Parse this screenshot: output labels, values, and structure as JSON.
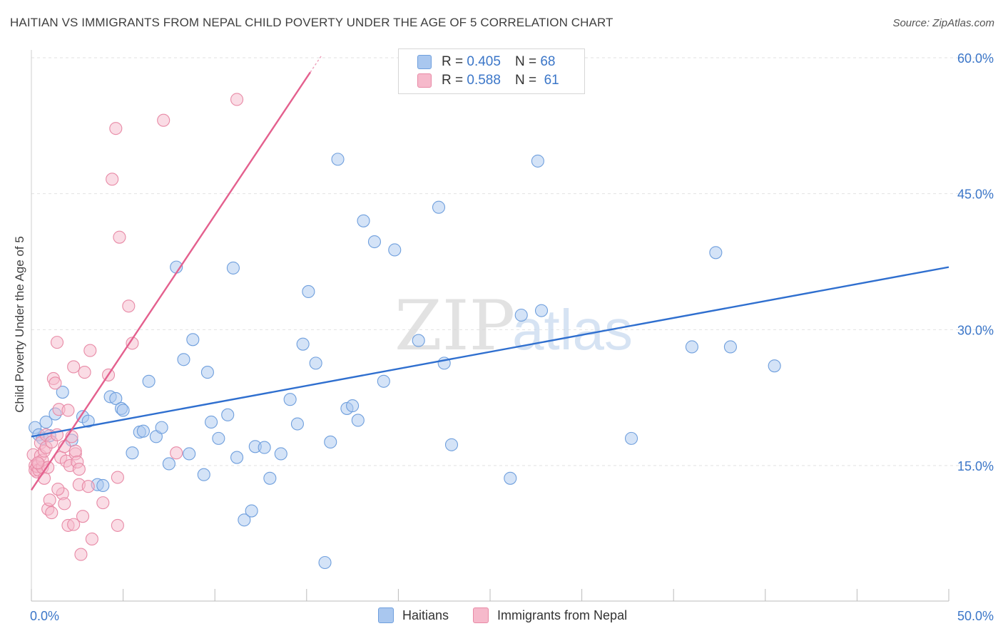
{
  "header": {
    "title": "HAITIAN VS IMMIGRANTS FROM NEPAL CHILD POVERTY UNDER THE AGE OF 5 CORRELATION CHART",
    "source": "Source: ZipAtlas.com"
  },
  "watermark": {
    "zip": "ZIP",
    "atlas": "atlas"
  },
  "legend_top": {
    "rows": [
      {
        "r_label": "R =",
        "r_value": "0.405",
        "n_label": "N =",
        "n_value": "68",
        "color": "#a9c7ef",
        "border": "#6f9fdd"
      },
      {
        "r_label": "R =",
        "r_value": "0.588",
        "n_label": "N =",
        "n_value": "61",
        "color": "#f6b9cb",
        "border": "#e88aa6"
      }
    ]
  },
  "legend_bottom": {
    "items": [
      {
        "label": "Haitians",
        "color": "#a9c7ef",
        "border": "#6f9fdd"
      },
      {
        "label": "Immigrants from Nepal",
        "color": "#f6b9cb",
        "border": "#e88aa6"
      }
    ]
  },
  "chart_data": {
    "type": "scatter",
    "title": "HAITIAN VS IMMIGRANTS FROM NEPAL CHILD POVERTY UNDER THE AGE OF 5 CORRELATION CHART",
    "xlabel": "",
    "ylabel": "Child Poverty Under the Age of 5",
    "xlim": [
      0,
      50
    ],
    "ylim": [
      0,
      62
    ],
    "x_tick_labels": [
      "0.0%",
      "50.0%"
    ],
    "y_ticks": [
      15,
      30,
      45,
      60
    ],
    "y_tick_labels": [
      "15.0%",
      "30.0%",
      "45.0%",
      "60.0%"
    ],
    "grid": true,
    "legend_position": "top-center",
    "series": [
      {
        "name": "Haitians",
        "color": "#a9c7ef",
        "edge_color": "#6f9fdd",
        "line_color": "#2f6fcf",
        "trend": {
          "x": [
            0,
            50
          ],
          "y": [
            18.2,
            36.9
          ]
        },
        "points": [
          [
            0.2,
            19.2
          ],
          [
            0.4,
            18.4
          ],
          [
            0.6,
            18.0
          ],
          [
            0.8,
            19.8
          ],
          [
            1.0,
            18.3
          ],
          [
            1.3,
            20.7
          ],
          [
            1.7,
            23.1
          ],
          [
            2.2,
            17.8
          ],
          [
            2.8,
            20.4
          ],
          [
            3.1,
            19.9
          ],
          [
            3.6,
            12.9
          ],
          [
            3.9,
            12.8
          ],
          [
            4.3,
            22.6
          ],
          [
            4.6,
            22.4
          ],
          [
            4.9,
            21.3
          ],
          [
            5.0,
            21.1
          ],
          [
            5.5,
            16.4
          ],
          [
            5.9,
            18.7
          ],
          [
            6.1,
            18.8
          ],
          [
            6.4,
            24.3
          ],
          [
            6.8,
            18.2
          ],
          [
            7.1,
            19.2
          ],
          [
            7.5,
            15.2
          ],
          [
            7.9,
            36.9
          ],
          [
            8.3,
            26.7
          ],
          [
            8.6,
            16.3
          ],
          [
            8.8,
            28.9
          ],
          [
            9.4,
            14.0
          ],
          [
            9.6,
            25.3
          ],
          [
            9.8,
            19.8
          ],
          [
            10.2,
            18.0
          ],
          [
            10.7,
            20.6
          ],
          [
            11.0,
            36.8
          ],
          [
            11.2,
            15.9
          ],
          [
            11.6,
            9.0
          ],
          [
            12.0,
            10.0
          ],
          [
            12.2,
            17.1
          ],
          [
            12.7,
            17.0
          ],
          [
            13.0,
            13.6
          ],
          [
            13.6,
            16.3
          ],
          [
            14.1,
            22.3
          ],
          [
            14.5,
            19.6
          ],
          [
            14.8,
            28.4
          ],
          [
            15.1,
            34.2
          ],
          [
            15.5,
            26.3
          ],
          [
            16.0,
            4.3
          ],
          [
            16.3,
            17.6
          ],
          [
            16.7,
            48.8
          ],
          [
            17.2,
            21.3
          ],
          [
            17.5,
            21.6
          ],
          [
            17.8,
            20.0
          ],
          [
            18.1,
            42.0
          ],
          [
            18.7,
            39.7
          ],
          [
            19.2,
            24.3
          ],
          [
            19.8,
            38.8
          ],
          [
            21.1,
            28.8
          ],
          [
            22.2,
            43.5
          ],
          [
            22.5,
            26.3
          ],
          [
            22.9,
            17.3
          ],
          [
            26.1,
            13.6
          ],
          [
            26.7,
            31.6
          ],
          [
            27.6,
            48.6
          ],
          [
            27.8,
            32.1
          ],
          [
            32.7,
            18.0
          ],
          [
            36.0,
            28.1
          ],
          [
            37.3,
            38.5
          ],
          [
            38.1,
            28.1
          ],
          [
            40.5,
            26.0
          ]
        ]
      },
      {
        "name": "Immigrants from Nepal",
        "color": "#f6b9cb",
        "edge_color": "#e88aa6",
        "line_color": "#e4608e",
        "trend": {
          "x": [
            0,
            15.2
          ],
          "y": [
            12.3,
            58.4
          ]
        },
        "trend_extension": {
          "x": [
            15.2,
            15.8
          ],
          "y": [
            58.4,
            60.2
          ]
        },
        "points": [
          [
            0.1,
            16.2
          ],
          [
            0.2,
            15.0
          ],
          [
            0.2,
            14.5
          ],
          [
            0.3,
            14.3
          ],
          [
            0.3,
            14.9
          ],
          [
            0.4,
            15.2
          ],
          [
            0.4,
            14.5
          ],
          [
            0.5,
            16.1
          ],
          [
            0.5,
            17.5
          ],
          [
            0.6,
            14.8
          ],
          [
            0.6,
            15.6
          ],
          [
            0.7,
            13.6
          ],
          [
            0.7,
            16.6
          ],
          [
            0.8,
            17.0
          ],
          [
            0.8,
            18.4
          ],
          [
            0.9,
            14.8
          ],
          [
            0.9,
            10.2
          ],
          [
            1.0,
            11.2
          ],
          [
            1.1,
            17.6
          ],
          [
            1.1,
            9.8
          ],
          [
            1.2,
            24.6
          ],
          [
            1.3,
            24.1
          ],
          [
            1.4,
            18.4
          ],
          [
            1.4,
            28.6
          ],
          [
            1.5,
            21.2
          ],
          [
            1.6,
            15.9
          ],
          [
            1.7,
            11.9
          ],
          [
            1.8,
            17.1
          ],
          [
            1.8,
            10.8
          ],
          [
            1.9,
            15.5
          ],
          [
            2.0,
            21.1
          ],
          [
            2.0,
            8.4
          ],
          [
            2.1,
            15.0
          ],
          [
            2.2,
            18.2
          ],
          [
            2.3,
            8.5
          ],
          [
            2.3,
            25.9
          ],
          [
            2.4,
            16.3
          ],
          [
            2.4,
            16.6
          ],
          [
            2.5,
            15.4
          ],
          [
            2.6,
            14.6
          ],
          [
            2.6,
            12.9
          ],
          [
            2.7,
            5.2
          ],
          [
            2.8,
            9.4
          ],
          [
            2.9,
            25.3
          ],
          [
            3.1,
            12.7
          ],
          [
            3.2,
            27.7
          ],
          [
            3.3,
            6.9
          ],
          [
            3.9,
            10.9
          ],
          [
            4.2,
            25.0
          ],
          [
            4.4,
            46.6
          ],
          [
            4.6,
            52.2
          ],
          [
            4.7,
            8.4
          ],
          [
            4.8,
            40.2
          ],
          [
            4.7,
            13.7
          ],
          [
            5.3,
            32.6
          ],
          [
            5.5,
            28.5
          ],
          [
            7.2,
            53.1
          ],
          [
            7.9,
            16.4
          ],
          [
            11.2,
            55.4
          ],
          [
            0.35,
            15.3
          ],
          [
            1.45,
            12.4
          ]
        ]
      }
    ]
  }
}
